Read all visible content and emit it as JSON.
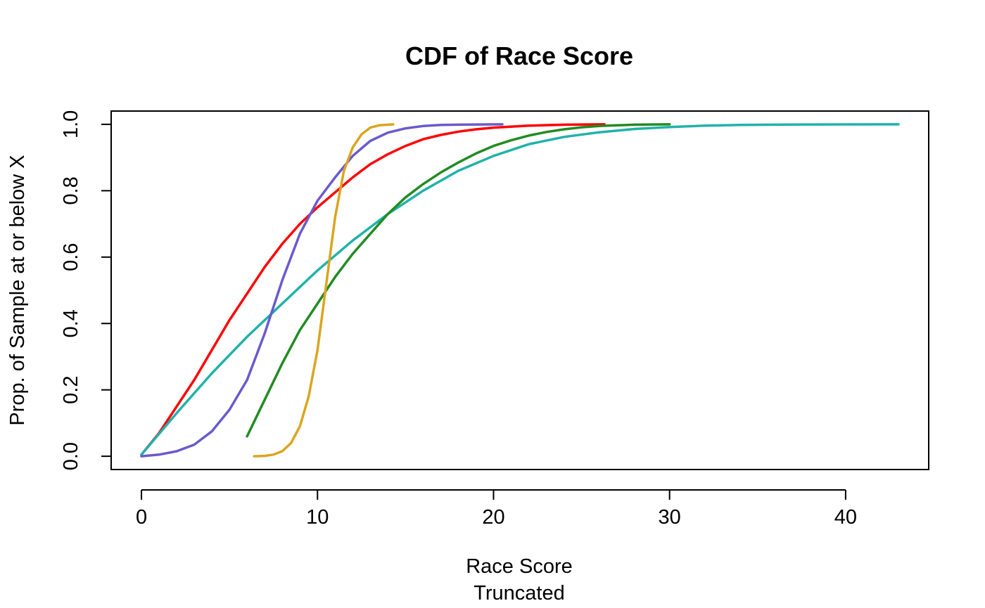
{
  "chart_data": {
    "type": "line",
    "title": "CDF of Race Score",
    "xlabel": "Race Score",
    "xlabel2": "Truncated",
    "ylabel": "Prop. of Sample at or below X",
    "xlim": [
      -1.72,
      44.72
    ],
    "ylim": [
      -0.04,
      1.04
    ],
    "x_ticks": [
      0,
      10,
      20,
      30,
      40
    ],
    "y_ticks": [
      0.0,
      0.2,
      0.4,
      0.6,
      0.8,
      1.0
    ],
    "x_tick_labels": [
      "0",
      "10",
      "20",
      "30",
      "40"
    ],
    "y_tick_labels": [
      "0.0",
      "0.2",
      "0.4",
      "0.6",
      "0.8",
      "1.0"
    ],
    "grid": false,
    "series": [
      {
        "color": "#ff0000",
        "x": [
          0,
          1,
          2,
          3,
          4,
          5,
          6,
          7,
          8,
          9,
          10,
          11,
          12,
          13,
          14,
          15,
          16,
          17,
          18,
          19,
          20,
          22,
          24,
          26.3
        ],
        "y": [
          0.005,
          0.07,
          0.15,
          0.23,
          0.32,
          0.41,
          0.49,
          0.57,
          0.64,
          0.7,
          0.75,
          0.795,
          0.84,
          0.88,
          0.91,
          0.935,
          0.955,
          0.968,
          0.978,
          0.985,
          0.99,
          0.996,
          0.999,
          1.0
        ]
      },
      {
        "color": "#20b2aa",
        "x": [
          0,
          2,
          4,
          6,
          8,
          10,
          12,
          14,
          15,
          16,
          18,
          20,
          22,
          24,
          26,
          28,
          30,
          32,
          34,
          36,
          38,
          40,
          43
        ],
        "y": [
          0.005,
          0.13,
          0.25,
          0.36,
          0.46,
          0.56,
          0.65,
          0.73,
          0.765,
          0.8,
          0.86,
          0.905,
          0.94,
          0.962,
          0.976,
          0.986,
          0.992,
          0.996,
          0.998,
          0.999,
          0.9995,
          0.9998,
          1.0
        ]
      },
      {
        "color": "#6a5acd",
        "x": [
          0,
          1,
          2,
          3,
          4,
          5,
          6,
          7,
          8,
          9,
          10,
          11,
          12,
          13,
          14,
          15,
          16,
          17,
          18,
          19,
          20.5
        ],
        "y": [
          0.0,
          0.005,
          0.015,
          0.035,
          0.075,
          0.14,
          0.23,
          0.37,
          0.53,
          0.67,
          0.77,
          0.84,
          0.905,
          0.95,
          0.975,
          0.988,
          0.995,
          0.998,
          0.999,
          0.9995,
          1.0
        ]
      },
      {
        "color": "#228b22",
        "x": [
          6,
          7,
          8,
          9,
          10,
          11,
          12,
          13,
          14,
          15,
          16,
          17,
          18,
          19,
          20,
          21,
          22,
          23,
          24,
          25,
          26,
          27,
          28,
          30
        ],
        "y": [
          0.06,
          0.17,
          0.28,
          0.38,
          0.46,
          0.54,
          0.61,
          0.67,
          0.73,
          0.78,
          0.82,
          0.855,
          0.885,
          0.912,
          0.935,
          0.952,
          0.966,
          0.977,
          0.985,
          0.991,
          0.995,
          0.997,
          0.999,
          1.0
        ]
      },
      {
        "color": "#daa520",
        "x": [
          6.4,
          7.0,
          7.5,
          8.0,
          8.5,
          9.0,
          9.5,
          10.0,
          10.5,
          11.0,
          11.5,
          12.0,
          12.5,
          13.0,
          13.5,
          14.3
        ],
        "y": [
          0.0,
          0.001,
          0.005,
          0.015,
          0.04,
          0.09,
          0.18,
          0.32,
          0.52,
          0.72,
          0.86,
          0.93,
          0.97,
          0.99,
          0.997,
          1.0
        ]
      }
    ]
  }
}
